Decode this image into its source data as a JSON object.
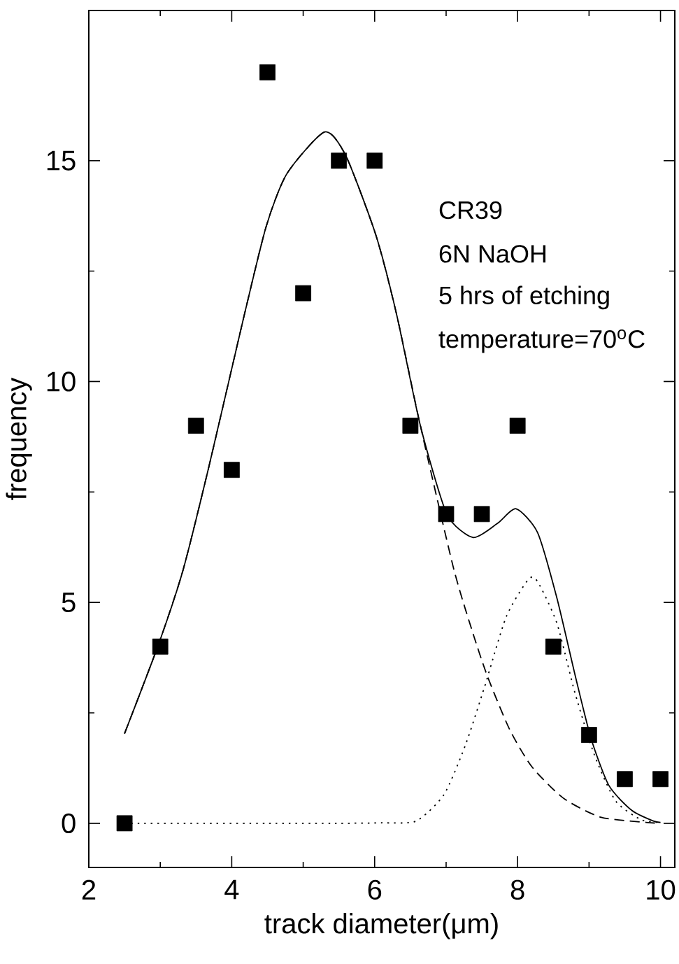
{
  "chart_data": {
    "type": "scatter",
    "xlabel": "track diameter(μm)",
    "ylabel": "frequency",
    "annotations": [
      "CR39",
      "6N NaOH",
      "5 hrs of etching",
      "temperature=70$^{o}$C"
    ],
    "x": [
      2.5,
      3,
      3.5,
      4,
      4.5,
      5,
      5.5,
      6,
      6.5,
      7,
      7.5,
      8,
      8.5,
      9,
      9.5,
      10
    ],
    "series": [
      {
        "color": "#000000",
        "marker": "square",
        "values": [
          0,
          4,
          9,
          8,
          17,
          12,
          15,
          15,
          9,
          7,
          7,
          9,
          4,
          2,
          1,
          1
        ]
      },
      {
        "type": "line",
        "color": "#000000",
        "line_style": "solid",
        "x": [
          2.5,
          2.98,
          3.32,
          3.68,
          4.16,
          4.48,
          4.77,
          5.3,
          5.6,
          6.02,
          6.31,
          6.64,
          7.01,
          7.38,
          7.72,
          7.98,
          8.28,
          8.55,
          8.81,
          9.03,
          9.28,
          9.6,
          9.9,
          10
        ],
        "values": [
          2.03,
          4.07,
          5.74,
          8.07,
          11.4,
          13.5,
          14.7,
          15.65,
          15.1,
          13.3,
          11.5,
          9.0,
          7.0,
          6.47,
          6.79,
          7.12,
          6.58,
          5.1,
          3.32,
          1.91,
          0.85,
          0.29,
          0.05,
          0.02
        ]
      },
      {
        "type": "line",
        "color": "#000000",
        "line_style": "dashed",
        "x": [
          2.5,
          2.98,
          3.32,
          3.68,
          4.16,
          4.48,
          4.77,
          5.3,
          5.6,
          6.02,
          6.31,
          6.64,
          7.1,
          7.36,
          7.58,
          7.89,
          8.2,
          8.64,
          9.16,
          9.8,
          10
        ],
        "values": [
          2.03,
          4.07,
          5.74,
          8.07,
          11.4,
          13.5,
          14.7,
          15.65,
          15.1,
          13.3,
          11.5,
          9.0,
          5.8,
          4.38,
          3.32,
          2.12,
          1.28,
          0.57,
          0.14,
          0.02,
          0
        ]
      },
      {
        "type": "line",
        "color": "#000000",
        "line_style": "dotted",
        "x": [
          2.5,
          3.5,
          4.5,
          5.5,
          6.1,
          6.58,
          6.97,
          7.27,
          7.54,
          7.84,
          8.15,
          8.28,
          8.55,
          8.8,
          9.07,
          9.37,
          9.73,
          10
        ],
        "values": [
          0,
          0,
          0,
          0,
          0.01,
          0.05,
          0.65,
          1.77,
          3.1,
          4.67,
          5.52,
          5.47,
          4.53,
          2.97,
          1.57,
          0.51,
          0.08,
          0.02
        ]
      }
    ],
    "xlim": [
      2,
      10.2
    ],
    "ylim": [
      -1,
      18.4
    ],
    "xticks": [
      2,
      4,
      6,
      8,
      10
    ],
    "yticks": [
      0,
      5,
      10,
      15
    ],
    "grid": false
  }
}
